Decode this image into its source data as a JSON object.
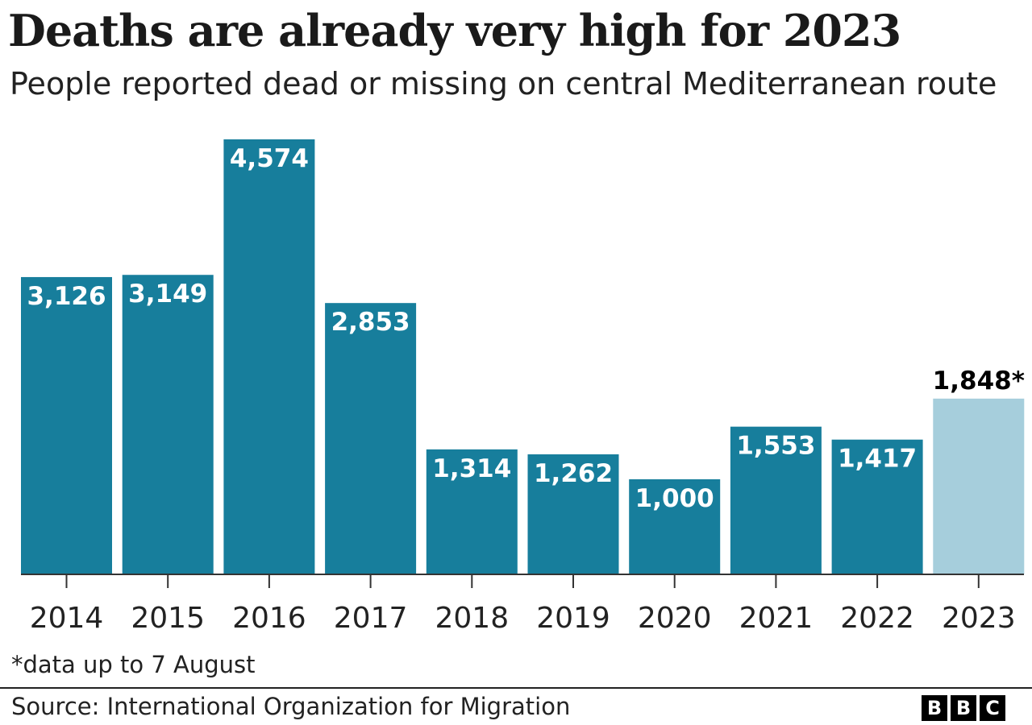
{
  "title": "Deaths are already very high for 2023",
  "subtitle": "People reported dead or missing on central Mediterranean route",
  "note": "*data up to 7 August",
  "source": "Source: International Organization for Migration",
  "logo": [
    "B",
    "B",
    "C"
  ],
  "colors": {
    "bar": "#177e9c",
    "highlight_bar": "#a6cedc",
    "label_inside": "#ffffff",
    "label_outside": "#000000",
    "axis": "#333333"
  },
  "chart_data": {
    "type": "bar",
    "categories": [
      "2014",
      "2015",
      "2016",
      "2017",
      "2018",
      "2019",
      "2020",
      "2021",
      "2022",
      "2023"
    ],
    "values": [
      3126,
      3149,
      4574,
      2853,
      1314,
      1262,
      1000,
      1553,
      1417,
      1848
    ],
    "value_labels": [
      "3,126",
      "3,149",
      "4,574",
      "2,853",
      "1,314",
      "1,262",
      "1,000",
      "1,553",
      "1,417",
      "1,848*"
    ],
    "highlight_index": 9,
    "ylim": [
      0,
      4574
    ],
    "grid": false,
    "xlabel": "",
    "ylabel": ""
  }
}
